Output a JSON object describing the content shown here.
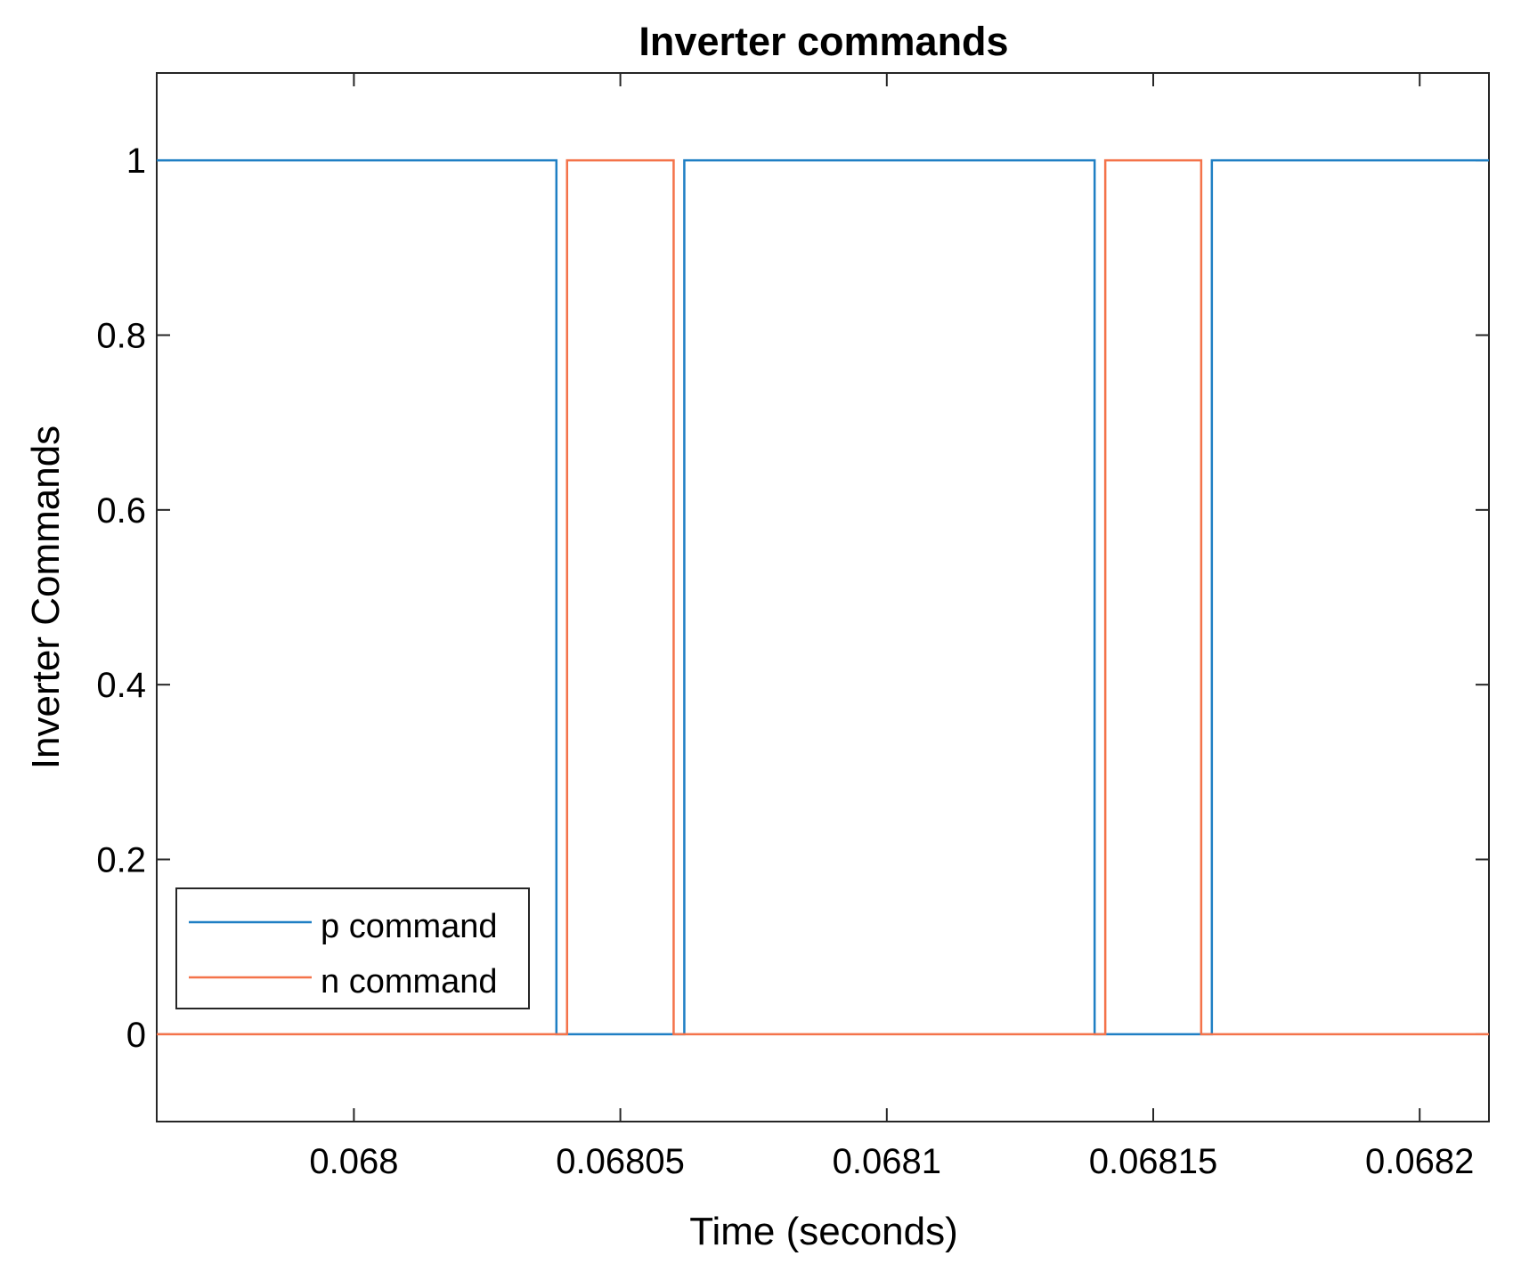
{
  "chart_data": {
    "type": "line",
    "title": "Inverter commands",
    "xlabel": "Time (seconds)",
    "ylabel": "Inverter Commands",
    "xlim": [
      0.067963,
      0.068213
    ],
    "ylim": [
      -0.1,
      1.1
    ],
    "x_ticks": [
      {
        "value": 0.068,
        "label": "0.068"
      },
      {
        "value": 0.06805,
        "label": "0.06805"
      },
      {
        "value": 0.0681,
        "label": "0.0681"
      },
      {
        "value": 0.06815,
        "label": "0.06815"
      },
      {
        "value": 0.0682,
        "label": "0.0682"
      }
    ],
    "y_ticks": [
      {
        "value": 0,
        "label": "0"
      },
      {
        "value": 0.2,
        "label": "0.2"
      },
      {
        "value": 0.4,
        "label": "0.4"
      },
      {
        "value": 0.6,
        "label": "0.6"
      },
      {
        "value": 0.8,
        "label": "0.8"
      },
      {
        "value": 1,
        "label": "1"
      }
    ],
    "grid": false,
    "legend_position": "bottom-left",
    "series": [
      {
        "name": "p command",
        "color": "#1f7fc4",
        "x": [
          0.067963,
          0.068038,
          0.068038,
          0.068062,
          0.068062,
          0.068139,
          0.068139,
          0.068161,
          0.068161,
          0.068213
        ],
        "y": [
          1,
          1,
          0,
          0,
          1,
          1,
          0,
          0,
          1,
          1
        ]
      },
      {
        "name": "n command",
        "color": "#f4734a",
        "x": [
          0.067963,
          0.06804,
          0.06804,
          0.06806,
          0.06806,
          0.068141,
          0.068141,
          0.068159,
          0.068159,
          0.068213
        ],
        "y": [
          0,
          0,
          1,
          1,
          0,
          0,
          1,
          1,
          0,
          0
        ]
      }
    ]
  }
}
